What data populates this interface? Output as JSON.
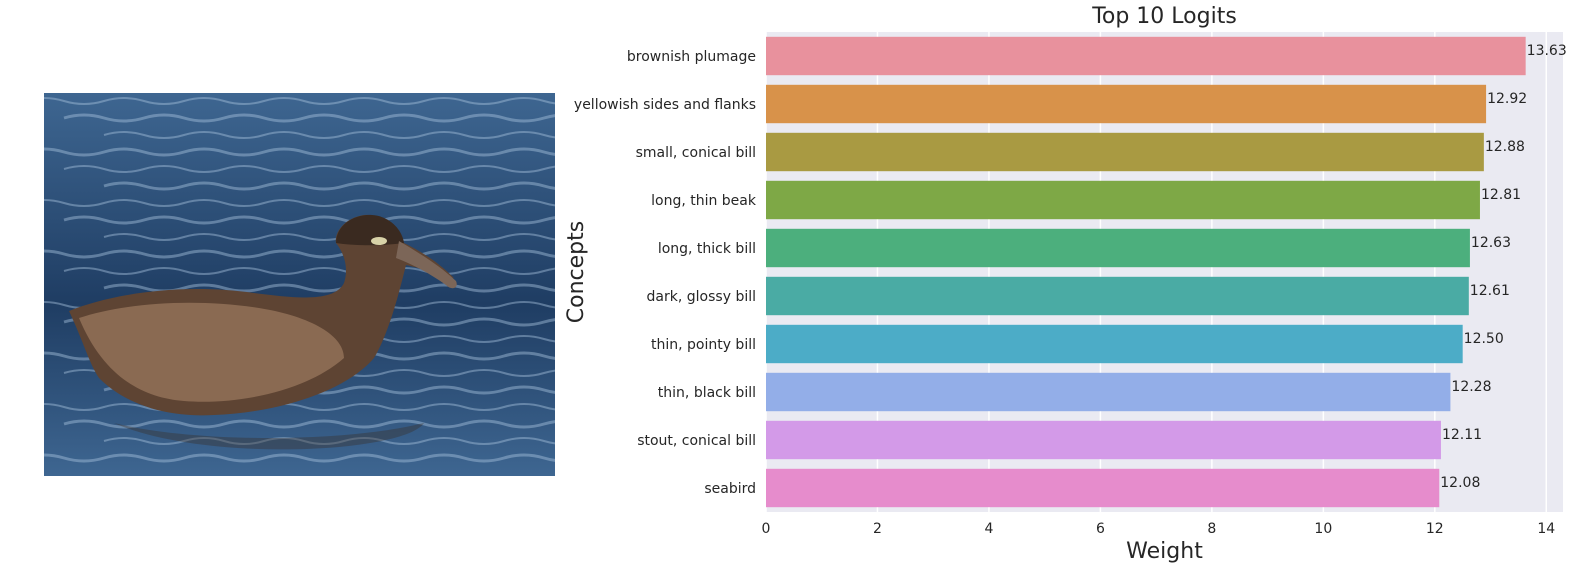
{
  "image": {
    "subject": "bird-photo",
    "colors": {
      "water_dark": "#1f3d63",
      "water_mid": "#3e6691",
      "water_light": "#a9c3de",
      "bird_body": "#5e4433",
      "bird_dark": "#3a2a20",
      "bird_light": "#8a6a52"
    }
  },
  "chart_data": {
    "type": "bar",
    "orientation": "horizontal",
    "title": "Top 10 Logits",
    "xlabel": "Weight",
    "ylabel": "Concepts",
    "xlim": [
      0,
      14.3
    ],
    "xticks": [
      0,
      2,
      4,
      6,
      8,
      10,
      12,
      14
    ],
    "grid": true,
    "value_format": "2 decimals",
    "categories": [
      "brownish plumage",
      "yellowish sides and flanks",
      "small, conical bill",
      "long, thin beak",
      "long, thick bill",
      "dark, glossy bill",
      "thin, pointy bill",
      "thin, black bill",
      "stout, conical bill",
      "seabird"
    ],
    "values": [
      13.63,
      12.92,
      12.88,
      12.81,
      12.63,
      12.61,
      12.5,
      12.28,
      12.11,
      12.08
    ],
    "colors": [
      "#e8919d",
      "#d8924a",
      "#a99a42",
      "#7ea846",
      "#4caf7d",
      "#4aaba4",
      "#4cacc7",
      "#93aee8",
      "#d39ae8",
      "#e68ccc"
    ],
    "background": "#eaeaf2",
    "grid_color": "#ffffff"
  }
}
